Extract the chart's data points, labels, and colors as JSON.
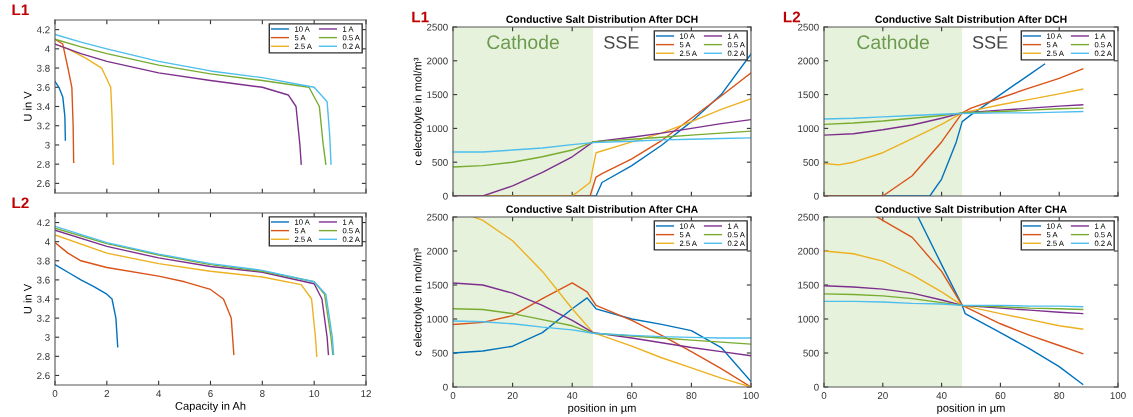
{
  "chart_data": [
    {
      "type": "line",
      "subtitle": "L1",
      "ylabel": "U in V",
      "xlim": [
        0,
        12
      ],
      "ylim": [
        2.5,
        4.3
      ],
      "xticks": [
        0,
        2,
        4,
        6,
        8,
        10,
        12
      ],
      "yticks": [
        2.6,
        2.8,
        3,
        3.2,
        3.4,
        3.6,
        3.8,
        4,
        4.2
      ],
      "tick_labels": "y",
      "legend": "top right",
      "series": [
        {
          "name": "10 A",
          "color": "#0072bd",
          "x": [
            0,
            0.15,
            0.3,
            0.38,
            0.4
          ],
          "values": [
            3.66,
            3.6,
            3.5,
            3.3,
            3.05
          ]
        },
        {
          "name": "5 A",
          "color": "#d95319",
          "x": [
            0,
            0.3,
            0.5,
            0.65,
            0.7,
            0.72
          ],
          "values": [
            4.1,
            4.05,
            3.8,
            3.6,
            3.2,
            2.82
          ]
        },
        {
          "name": "2.5 A",
          "color": "#edb120",
          "x": [
            0,
            0.5,
            1.2,
            1.8,
            2.15,
            2.2,
            2.25
          ],
          "values": [
            4.05,
            4.0,
            3.9,
            3.8,
            3.6,
            3.3,
            2.8
          ]
        },
        {
          "name": "1 A",
          "color": "#7e2f8e",
          "x": [
            0,
            1,
            2,
            4,
            6,
            8,
            9,
            9.3,
            9.45,
            9.5
          ],
          "values": [
            4.05,
            3.95,
            3.87,
            3.75,
            3.67,
            3.6,
            3.52,
            3.4,
            3.0,
            2.8
          ]
        },
        {
          "name": "0.5 A",
          "color": "#77ac30",
          "x": [
            0,
            1,
            2,
            4,
            6,
            8,
            9.8,
            10.2,
            10.35,
            10.45
          ],
          "values": [
            4.1,
            4.02,
            3.95,
            3.83,
            3.74,
            3.67,
            3.6,
            3.4,
            3.0,
            2.8
          ]
        },
        {
          "name": "0.2 A",
          "color": "#4dbeee",
          "x": [
            0,
            1,
            2,
            4,
            6,
            8,
            10,
            10.5,
            10.6,
            10.65
          ],
          "values": [
            4.15,
            4.07,
            4.0,
            3.87,
            3.77,
            3.7,
            3.6,
            3.45,
            3.1,
            2.8
          ]
        }
      ]
    },
    {
      "type": "line",
      "subtitle": "L2",
      "xlabel": "Capacity in Ah",
      "ylabel": "U in V",
      "xlim": [
        0,
        12
      ],
      "ylim": [
        2.5,
        4.3
      ],
      "xticks": [
        0,
        2,
        4,
        6,
        8,
        10,
        12
      ],
      "yticks": [
        2.6,
        2.8,
        3,
        3.2,
        3.4,
        3.6,
        3.8,
        4,
        4.2
      ],
      "legend": "top right",
      "series": [
        {
          "name": "10 A",
          "color": "#0072bd",
          "x": [
            0,
            0.5,
            1,
            1.5,
            2,
            2.2,
            2.35,
            2.42
          ],
          "values": [
            3.76,
            3.68,
            3.6,
            3.53,
            3.45,
            3.4,
            3.2,
            2.9
          ]
        },
        {
          "name": "5 A",
          "color": "#d95319",
          "x": [
            0,
            0.5,
            1,
            2,
            4,
            5,
            6,
            6.5,
            6.8,
            6.9
          ],
          "values": [
            3.99,
            3.88,
            3.8,
            3.73,
            3.64,
            3.58,
            3.5,
            3.4,
            3.2,
            2.82
          ]
        },
        {
          "name": "2.5 A",
          "color": "#edb120",
          "x": [
            0,
            2,
            4,
            6,
            8,
            9.5,
            9.9,
            10.05,
            10.1
          ],
          "values": [
            4.07,
            3.88,
            3.77,
            3.69,
            3.63,
            3.55,
            3.4,
            3.0,
            2.8
          ]
        },
        {
          "name": "1 A",
          "color": "#7e2f8e",
          "x": [
            0,
            2,
            4,
            6,
            8,
            10,
            10.3,
            10.5,
            10.55
          ],
          "values": [
            4.12,
            3.95,
            3.83,
            3.74,
            3.68,
            3.56,
            3.4,
            3.0,
            2.82
          ]
        },
        {
          "name": "0.5 A",
          "color": "#77ac30",
          "x": [
            0,
            2,
            4,
            6,
            8,
            10,
            10.4,
            10.65,
            10.72
          ],
          "values": [
            4.14,
            3.98,
            3.86,
            3.76,
            3.69,
            3.58,
            3.45,
            3.0,
            2.82
          ]
        },
        {
          "name": "0.2 A",
          "color": "#4dbeee",
          "x": [
            0,
            2,
            4,
            6,
            8,
            10,
            10.45,
            10.7,
            10.75
          ],
          "values": [
            4.16,
            3.99,
            3.87,
            3.77,
            3.7,
            3.58,
            3.45,
            3.0,
            2.82
          ]
        }
      ]
    },
    {
      "type": "line",
      "title": "Conductive Salt Distribution After DCH",
      "subtitle": "L1",
      "ylabel": "c electrolyte in mol/m³",
      "xlim": [
        0,
        100
      ],
      "ylim": [
        0,
        2500
      ],
      "xticks": [
        0,
        20,
        40,
        60,
        80,
        100
      ],
      "yticks": [
        0,
        500,
        1000,
        1500,
        2000,
        2500
      ],
      "tick_labels": "y",
      "legend": "top right",
      "bands": [
        {
          "axis": "x",
          "from": 0,
          "to": 47,
          "label": "Cathode",
          "color": "#e7f2dc"
        }
      ],
      "annotations": [
        "SSE"
      ],
      "series": [
        {
          "name": "10 A",
          "color": "#0072bd",
          "x": [
            0,
            47,
            48,
            50,
            60,
            70,
            80,
            90,
            100
          ],
          "values": [
            0,
            0,
            0,
            200,
            450,
            750,
            1100,
            1500,
            2100
          ]
        },
        {
          "name": "5 A",
          "color": "#d95319",
          "x": [
            0,
            46,
            48,
            50,
            60,
            70,
            80,
            90,
            100
          ],
          "values": [
            0,
            0,
            280,
            330,
            550,
            820,
            1150,
            1480,
            1820
          ]
        },
        {
          "name": "2.5 A",
          "color": "#edb120",
          "x": [
            0,
            40,
            46,
            48,
            60,
            70,
            80,
            90,
            100
          ],
          "values": [
            0,
            0,
            200,
            640,
            800,
            930,
            1100,
            1280,
            1440
          ]
        },
        {
          "name": "1 A",
          "color": "#7e2f8e",
          "x": [
            0,
            10,
            20,
            30,
            40,
            47,
            60,
            70,
            80,
            90,
            100
          ],
          "values": [
            0,
            0,
            150,
            350,
            580,
            800,
            870,
            930,
            1000,
            1070,
            1130
          ]
        },
        {
          "name": "0.5 A",
          "color": "#77ac30",
          "x": [
            0,
            10,
            20,
            30,
            40,
            47,
            60,
            70,
            80,
            90,
            100
          ],
          "values": [
            430,
            450,
            500,
            580,
            680,
            800,
            840,
            870,
            900,
            930,
            960
          ]
        },
        {
          "name": "0.2 A",
          "color": "#4dbeee",
          "x": [
            0,
            10,
            20,
            30,
            40,
            47,
            60,
            70,
            80,
            90,
            100
          ],
          "values": [
            650,
            650,
            680,
            710,
            760,
            790,
            810,
            830,
            840,
            850,
            860
          ]
        }
      ]
    },
    {
      "type": "line",
      "title": "Conductive Salt Distribution After CHA",
      "xlabel": "position in µm",
      "ylabel": "c electrolyte in mol/m³",
      "xlim": [
        0,
        100
      ],
      "ylim": [
        0,
        2500
      ],
      "xticks": [
        0,
        20,
        40,
        60,
        80,
        100
      ],
      "yticks": [
        0,
        500,
        1000,
        1500,
        2000,
        2500
      ],
      "legend": "top right",
      "bands": [
        {
          "axis": "x",
          "from": 0,
          "to": 47,
          "color": "#e7f2dc"
        }
      ],
      "series": [
        {
          "name": "10 A",
          "color": "#0072bd",
          "x": [
            0,
            10,
            20,
            30,
            40,
            45,
            48,
            60,
            70,
            80,
            90,
            100
          ],
          "values": [
            500,
            530,
            600,
            800,
            1150,
            1310,
            1150,
            1000,
            920,
            830,
            580,
            80
          ]
        },
        {
          "name": "5 A",
          "color": "#d95319",
          "x": [
            0,
            10,
            20,
            30,
            40,
            45,
            48,
            60,
            70,
            80,
            90,
            100
          ],
          "values": [
            920,
            950,
            1050,
            1300,
            1530,
            1400,
            1200,
            980,
            760,
            520,
            270,
            0
          ]
        },
        {
          "name": "2.5 A",
          "color": "#edb120",
          "x": [
            7,
            10,
            20,
            30,
            40,
            47,
            60,
            70,
            80,
            90,
            100
          ],
          "values": [
            2500,
            2450,
            2150,
            1700,
            1150,
            800,
            600,
            430,
            280,
            130,
            0
          ]
        },
        {
          "name": "1 A",
          "color": "#7e2f8e",
          "x": [
            0,
            10,
            20,
            30,
            40,
            47,
            60,
            70,
            80,
            90,
            100
          ],
          "values": [
            1530,
            1500,
            1380,
            1200,
            980,
            800,
            720,
            650,
            580,
            520,
            460
          ]
        },
        {
          "name": "0.5 A",
          "color": "#77ac30",
          "x": [
            0,
            10,
            20,
            30,
            40,
            47,
            60,
            70,
            80,
            90,
            100
          ],
          "values": [
            1150,
            1140,
            1080,
            990,
            900,
            790,
            750,
            720,
            690,
            660,
            630
          ]
        },
        {
          "name": "0.2 A",
          "color": "#4dbeee",
          "x": [
            0,
            10,
            20,
            30,
            40,
            47,
            60,
            70,
            80,
            90,
            100
          ],
          "values": [
            970,
            960,
            930,
            880,
            840,
            790,
            760,
            740,
            730,
            720,
            720
          ]
        }
      ]
    },
    {
      "type": "line",
      "title": "Conductive Salt Distribution After DCH",
      "subtitle": "L2",
      "xlim": [
        0,
        100
      ],
      "ylim": [
        0,
        2500
      ],
      "xticks": [
        0,
        20,
        40,
        60,
        80,
        100
      ],
      "yticks": [
        0,
        500,
        1000,
        1500,
        2000,
        2500
      ],
      "tick_labels": "y",
      "legend": "top right",
      "bands": [
        {
          "axis": "x",
          "from": 0,
          "to": 47,
          "label": "Cathode",
          "color": "#e7f2dc"
        }
      ],
      "annotations": [
        "SSE"
      ],
      "series": [
        {
          "name": "10 A",
          "color": "#0072bd",
          "x": [
            0,
            36,
            40,
            45,
            47,
            50,
            60,
            70,
            75
          ],
          "values": [
            0,
            0,
            250,
            800,
            1100,
            1200,
            1500,
            1800,
            1950
          ]
        },
        {
          "name": "5 A",
          "color": "#d95319",
          "x": [
            0,
            20,
            30,
            40,
            47,
            50,
            60,
            70,
            80,
            88
          ],
          "values": [
            0,
            0,
            300,
            800,
            1230,
            1300,
            1450,
            1600,
            1740,
            1880
          ]
        },
        {
          "name": "2.5 A",
          "color": "#edb120",
          "x": [
            0,
            5,
            10,
            20,
            30,
            40,
            47,
            60,
            70,
            80,
            88
          ],
          "values": [
            480,
            460,
            500,
            640,
            850,
            1060,
            1230,
            1350,
            1430,
            1510,
            1580
          ]
        },
        {
          "name": "1 A",
          "color": "#7e2f8e",
          "x": [
            0,
            10,
            20,
            30,
            40,
            47,
            60,
            70,
            80,
            88
          ],
          "values": [
            900,
            920,
            980,
            1050,
            1150,
            1230,
            1270,
            1300,
            1330,
            1350
          ]
        },
        {
          "name": "0.5 A",
          "color": "#77ac30",
          "x": [
            0,
            10,
            20,
            30,
            40,
            47,
            60,
            70,
            80,
            88
          ],
          "values": [
            1060,
            1080,
            1110,
            1150,
            1190,
            1230,
            1250,
            1270,
            1290,
            1300
          ]
        },
        {
          "name": "0.2 A",
          "color": "#4dbeee",
          "x": [
            0,
            10,
            20,
            30,
            40,
            47,
            60,
            70,
            80,
            88
          ],
          "values": [
            1140,
            1150,
            1170,
            1190,
            1210,
            1220,
            1230,
            1230,
            1240,
            1250
          ]
        }
      ]
    },
    {
      "type": "line",
      "title": "Conductive Salt Distribution After CHA",
      "xlabel": "position in µm",
      "xlim": [
        0,
        100
      ],
      "ylim": [
        0,
        2500
      ],
      "xticks": [
        0,
        20,
        40,
        60,
        80,
        100
      ],
      "yticks": [
        0,
        500,
        1000,
        1500,
        2000,
        2500
      ],
      "legend": "top right",
      "bands": [
        {
          "axis": "x",
          "from": 0,
          "to": 47,
          "color": "#e7f2dc"
        }
      ],
      "series": [
        {
          "name": "10 A",
          "color": "#0072bd",
          "x": [
            32,
            40,
            47,
            48,
            60,
            70,
            80,
            88
          ],
          "values": [
            2500,
            1800,
            1200,
            1080,
            800,
            560,
            300,
            40
          ]
        },
        {
          "name": "5 A",
          "color": "#d95319",
          "x": [
            18,
            30,
            40,
            47,
            60,
            70,
            80,
            88
          ],
          "values": [
            2500,
            2200,
            1700,
            1200,
            930,
            760,
            610,
            490
          ]
        },
        {
          "name": "2.5 A",
          "color": "#edb120",
          "x": [
            0,
            10,
            20,
            30,
            40,
            47,
            60,
            70,
            80,
            88
          ],
          "values": [
            2000,
            1960,
            1850,
            1650,
            1400,
            1200,
            1080,
            990,
            900,
            850
          ]
        },
        {
          "name": "1 A",
          "color": "#7e2f8e",
          "x": [
            0,
            10,
            20,
            30,
            40,
            47,
            60,
            70,
            80,
            88
          ],
          "values": [
            1490,
            1470,
            1440,
            1380,
            1280,
            1200,
            1160,
            1130,
            1100,
            1080
          ]
        },
        {
          "name": "0.5 A",
          "color": "#77ac30",
          "x": [
            0,
            10,
            20,
            30,
            40,
            47,
            60,
            70,
            80,
            88
          ],
          "values": [
            1370,
            1360,
            1340,
            1300,
            1240,
            1200,
            1180,
            1160,
            1150,
            1140
          ]
        },
        {
          "name": "0.2 A",
          "color": "#4dbeee",
          "x": [
            0,
            10,
            20,
            30,
            40,
            47,
            60,
            70,
            80,
            88
          ],
          "values": [
            1260,
            1260,
            1250,
            1230,
            1220,
            1200,
            1200,
            1190,
            1190,
            1180
          ]
        }
      ]
    }
  ]
}
